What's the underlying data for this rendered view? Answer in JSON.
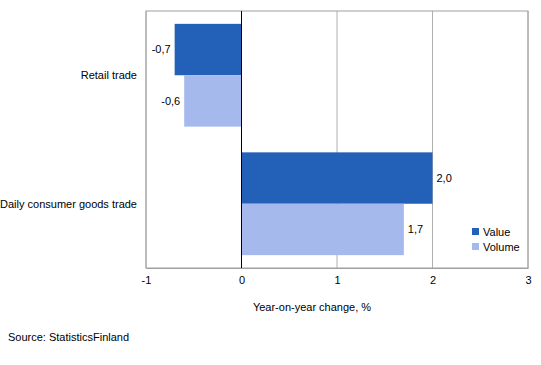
{
  "chart_data": {
    "type": "bar",
    "orientation": "horizontal",
    "categories": [
      "Retail trade",
      "Daily consumer goods trade"
    ],
    "series": [
      {
        "name": "Value",
        "color": "#2360b8",
        "values": [
          -0.7,
          2.0
        ],
        "value_labels": [
          "-0,7",
          "2,0"
        ]
      },
      {
        "name": "Volume",
        "color": "#a6b9ec",
        "values": [
          -0.6,
          1.7
        ],
        "value_labels": [
          "-0,6",
          "1,7"
        ]
      }
    ],
    "xlim": [
      -1,
      3
    ],
    "xticks": [
      -1,
      0,
      1,
      2,
      3
    ],
    "x_label": "Year-on-year change, %",
    "annotations": [
      "Source: StatisticsFinland"
    ],
    "grid": true,
    "legend": "lower right",
    "data_labels": true
  }
}
